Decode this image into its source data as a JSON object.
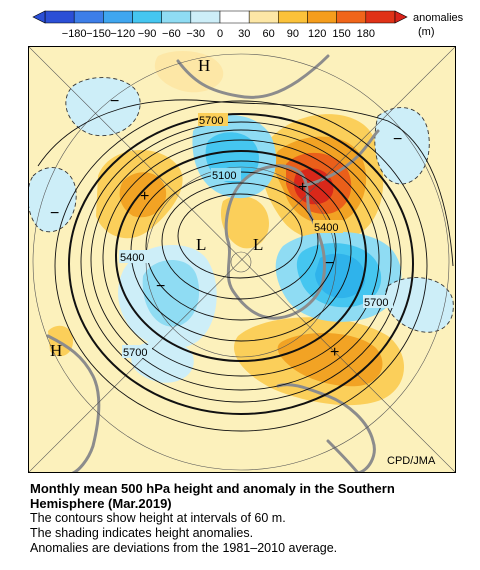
{
  "colorbar": {
    "ticks": [
      "-180",
      "-150",
      "-120",
      "-90",
      "-60",
      "-30",
      "0",
      "30",
      "60",
      "90",
      "120",
      "150",
      "180"
    ],
    "label_line1": "anomalies",
    "label_line2": "(m)",
    "colors": [
      "#2b4fd6",
      "#3d7ee8",
      "#3fa6ef",
      "#45c6f0",
      "#8fdcf3",
      "#cdeef8",
      "#ffffff",
      "#fde7a6",
      "#fbc23a",
      "#f59d1c",
      "#f0651a",
      "#e03217"
    ]
  },
  "map": {
    "contour_labels": {
      "top_5700": "5700",
      "center_5100": "5100",
      "right_5400": "5400",
      "left_5400": "5400",
      "right_5700": "5700",
      "bottom_5700": "5700"
    },
    "symbols": {
      "high_top": "H",
      "high_left": "H",
      "low_center_left": "L",
      "low_center_right": "L",
      "plus_left": "+",
      "plus_right_top": "+",
      "plus_bottom": "+",
      "minus_topleft": "−",
      "minus_left": "−",
      "minus_right": "−",
      "minus_center": "−",
      "minus_right_center": "−"
    },
    "credit": "CPD/JMA",
    "colors": {
      "background": "#fcf1bc",
      "pos_light": "#fbcf5a",
      "pos_mid": "#f2a324",
      "pos_strong": "#ea5f1a",
      "pos_max": "#d9281a",
      "neg_light": "#cdeef8",
      "neg_mid": "#76d2f0",
      "neg_strong": "#2fb3eb",
      "land": "#8c8c8c"
    }
  },
  "caption": {
    "title": "Monthly mean 500 hPa height and anomaly in the Southern Hemisphere (Mar.2019)",
    "line1": "The contours show height at intervals of 60 m.",
    "line2": "The shading indicates height anomalies.",
    "line3": "Anomalies are deviations from the 1981–2010 average."
  }
}
